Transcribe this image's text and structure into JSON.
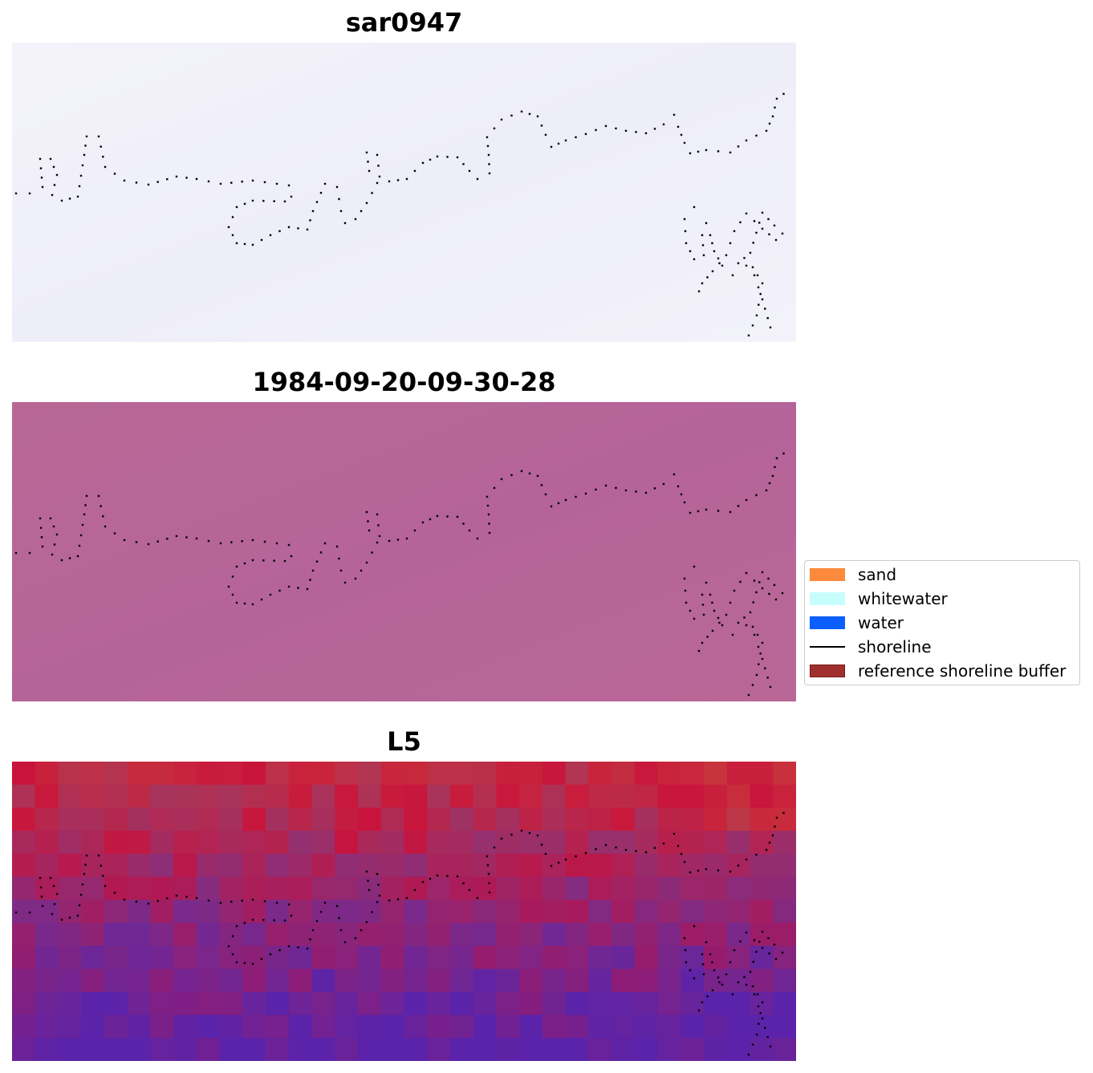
{
  "panels": [
    {
      "title": "sar0947",
      "image": "pale-sar-backdrop"
    },
    {
      "title": "1984-09-20-09-30-28",
      "image": "magenta-uniform-backdrop"
    },
    {
      "title": "L5",
      "image": "pixelated-red-purple-backdrop"
    }
  ],
  "legend": {
    "items": [
      {
        "label": "sand",
        "color": "#fd8a3c",
        "kind": "patch"
      },
      {
        "label": "whitewater",
        "color": "#c8fdfd",
        "kind": "patch"
      },
      {
        "label": "water",
        "color": "#0c5efd",
        "kind": "patch"
      },
      {
        "label": "shoreline",
        "color": "#000000",
        "kind": "line"
      },
      {
        "label": "reference shoreline buffer",
        "color": "#a03030",
        "kind": "patch"
      }
    ]
  }
}
